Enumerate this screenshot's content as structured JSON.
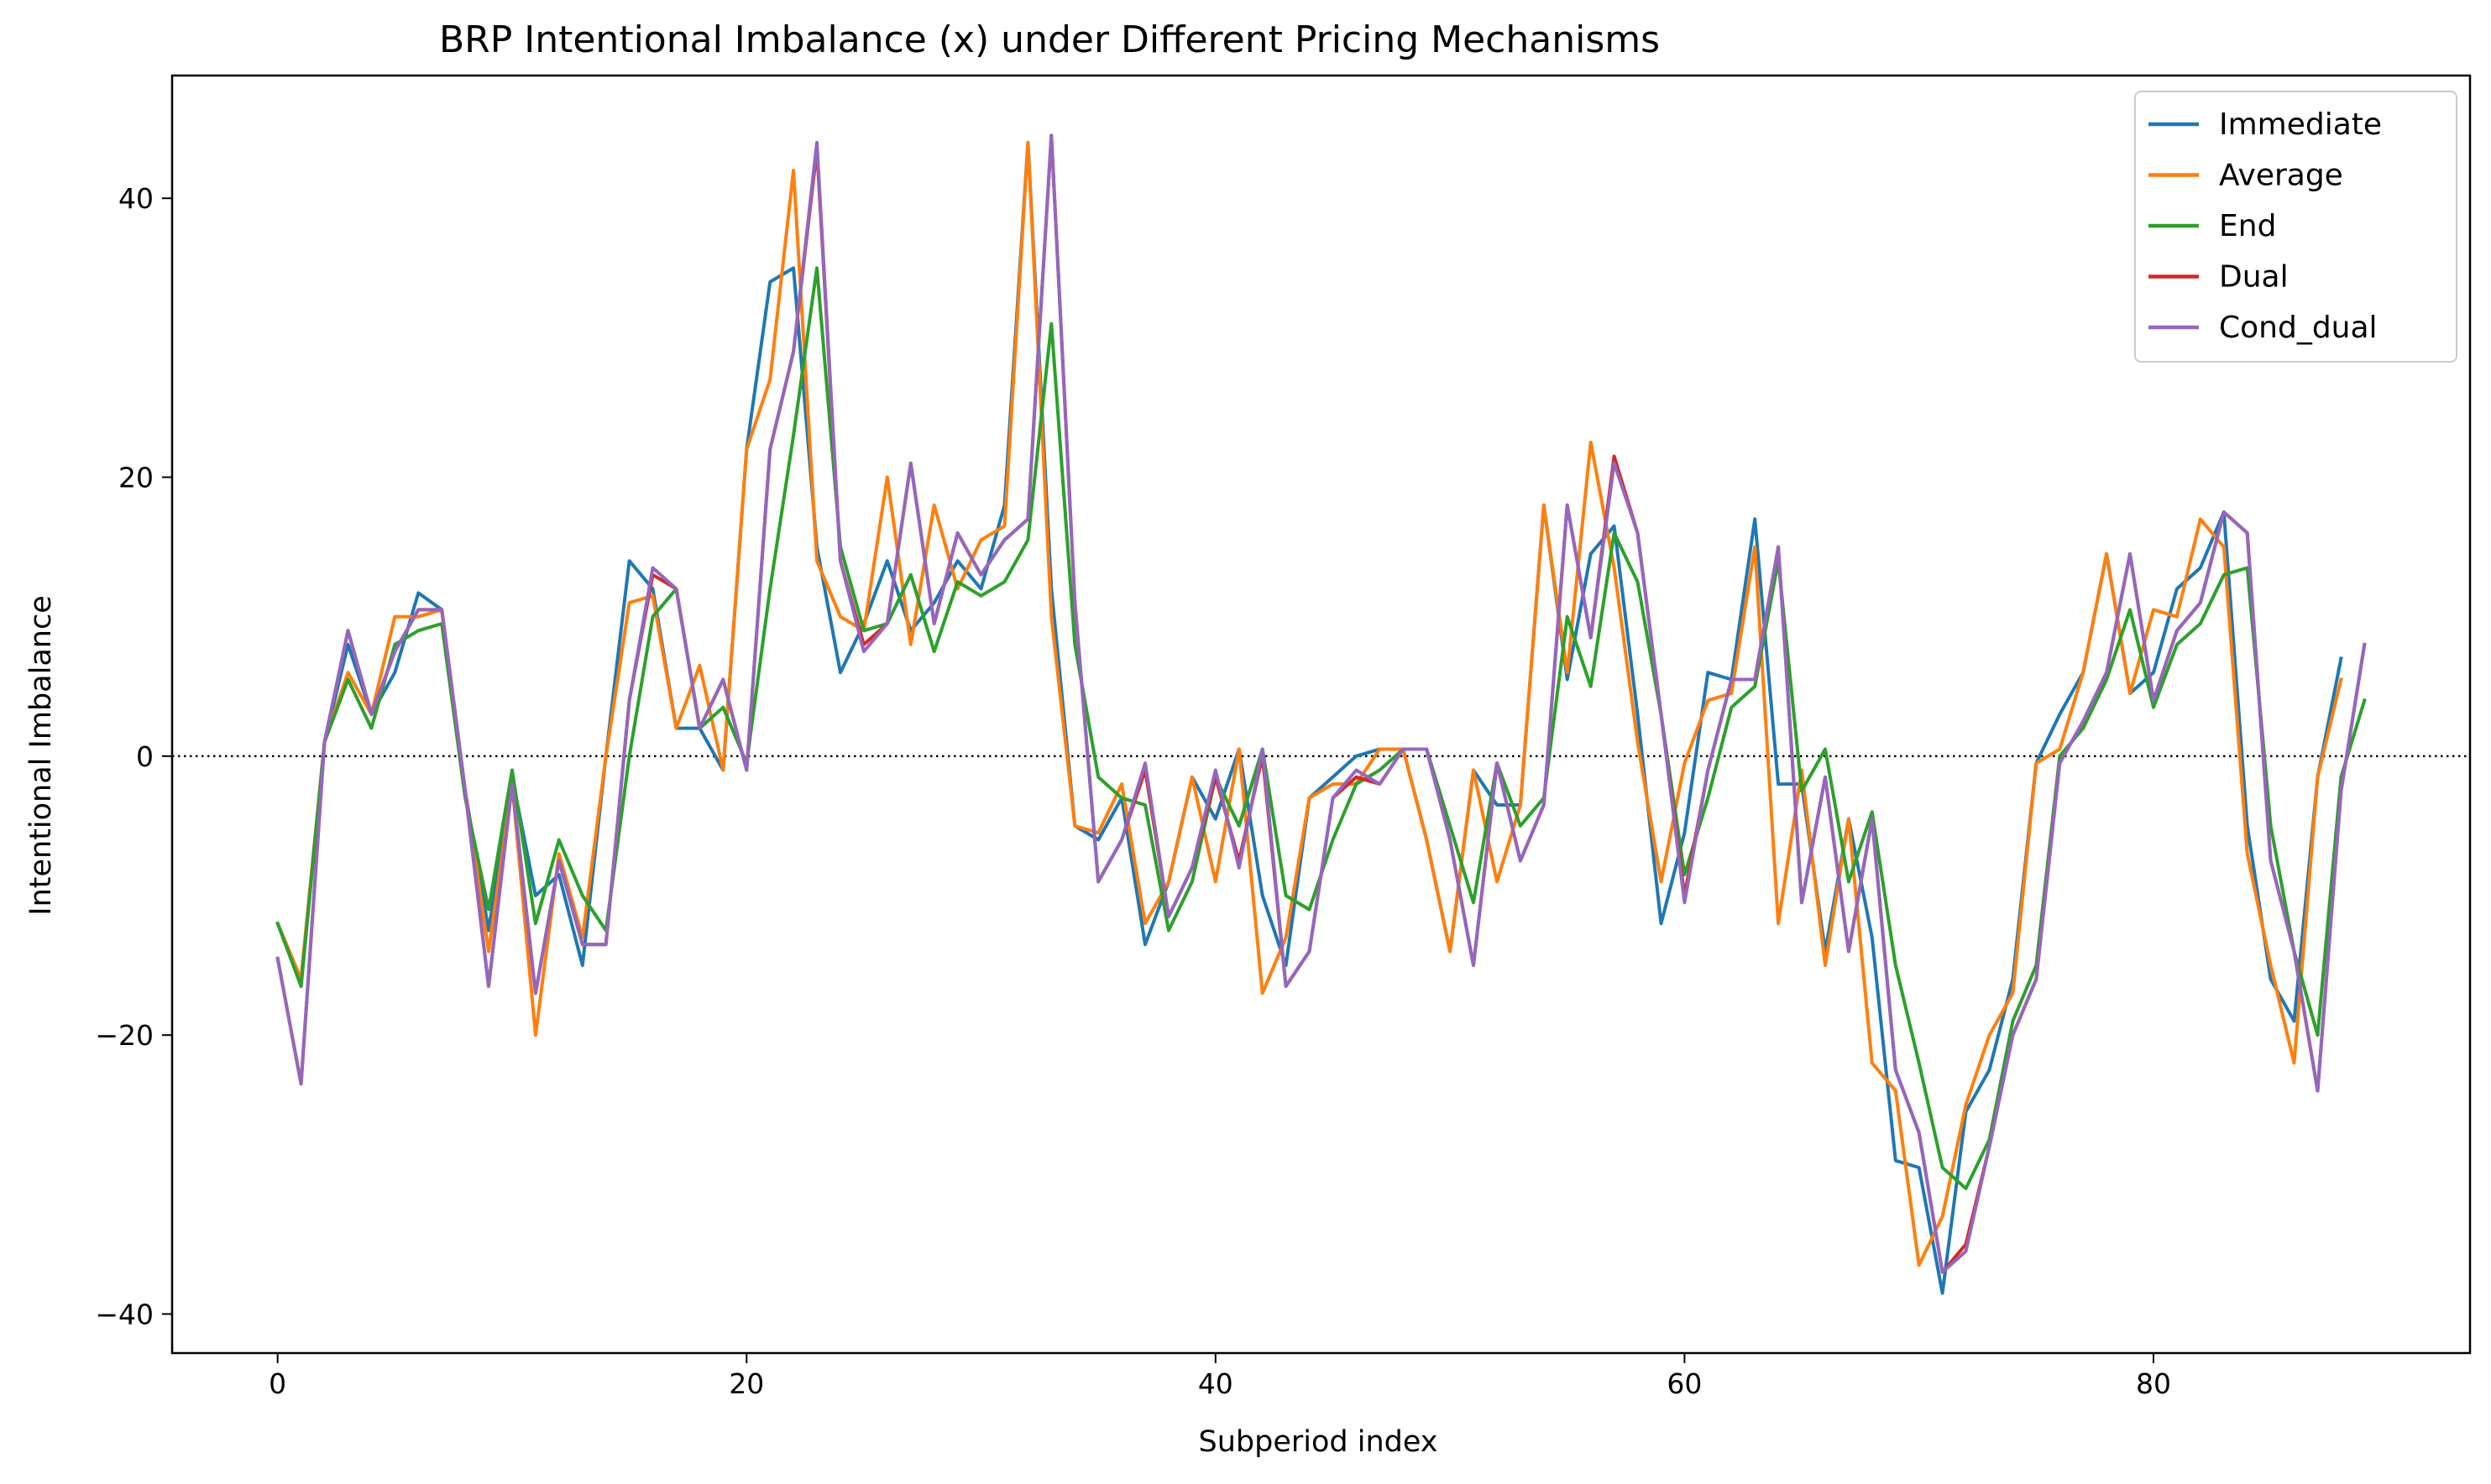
{
  "chart_data": {
    "type": "line",
    "title": "BRP Intentional Imbalance (x) under Different Pricing Mechanisms",
    "xlabel": "Subperiod index",
    "ylabel": "Intentional Imbalance",
    "xlim": [
      -4.5,
      93.5
    ],
    "ylim": [
      -42.8,
      48.8
    ],
    "xticks": [
      0,
      20,
      40,
      60,
      80
    ],
    "yticks": [
      -40,
      -20,
      0,
      20,
      40
    ],
    "xtick_labels": [
      "0",
      "20",
      "40",
      "60",
      "80"
    ],
    "ytick_labels": [
      "−40",
      "−20",
      "0",
      "20",
      "40"
    ],
    "reference_line": {
      "y": 0,
      "style": "dotted",
      "color": "#000000"
    },
    "legend": {
      "placement": "top-right"
    },
    "series": [
      {
        "name": "Immediate",
        "color": "#1f77b4",
        "values": [
          -12,
          -16,
          1,
          8,
          3,
          6,
          11.7,
          10.5,
          -2.5,
          -12.5,
          -1.5,
          -10,
          -8.5,
          -15,
          0,
          14,
          12,
          2,
          2,
          -1,
          22,
          34,
          35,
          15,
          6,
          9.5,
          14,
          9,
          11,
          14,
          12,
          18,
          44,
          12,
          -5,
          -6,
          -3,
          -13.5,
          -9,
          -1.5,
          -4.5,
          0.5,
          -10,
          -15,
          -3,
          -1.5,
          0,
          0.5,
          0.5,
          -6,
          -14,
          -1,
          -3.5,
          -3.5,
          18,
          5.5,
          14.5,
          16.5,
          3,
          -12,
          -5.5,
          6,
          5.5,
          17,
          -2,
          -2,
          -14,
          -4.5,
          -13,
          -29,
          -29.5,
          -38.5,
          -25.5,
          -22.5,
          -16,
          -0.5,
          3,
          6,
          14.5,
          4.5,
          6,
          12,
          13.5,
          17.5,
          -5,
          -16,
          -19,
          -1.5,
          7
        ]
      },
      {
        "name": "Average",
        "color": "#ff7f0e",
        "values": [
          -12,
          -16,
          1,
          6,
          3,
          10,
          10,
          10.5,
          -2.5,
          -14,
          -2,
          -20,
          -7,
          -13,
          0,
          11,
          11.5,
          2,
          6.5,
          -1,
          22,
          27,
          42,
          14,
          10,
          9,
          20,
          8,
          18,
          12,
          15.5,
          16.5,
          44,
          10,
          -5,
          -5.5,
          -2,
          -12,
          -9,
          -1.5,
          -9,
          0.5,
          -17,
          -13,
          -3,
          -2,
          -2,
          0.5,
          0.5,
          -6,
          -14,
          -1,
          -9,
          -3.5,
          18,
          6,
          22.5,
          13.5,
          1,
          -9,
          -0.5,
          4,
          4.5,
          15,
          -12,
          -1,
          -15,
          -4.5,
          -22,
          -24,
          -36.5,
          -33,
          -25,
          -20,
          -17,
          -0.5,
          0.5,
          6,
          14.5,
          4.5,
          10.5,
          10,
          17,
          15,
          -7,
          -15,
          -22,
          -1.5,
          5.5
        ]
      },
      {
        "name": "End",
        "color": "#2ca02c",
        "values": [
          -12,
          -16.5,
          1,
          5.5,
          2,
          8,
          9,
          9.5,
          -3,
          -11,
          -1,
          -12,
          -6,
          -10,
          -12.5,
          0,
          10,
          12,
          2,
          3.5,
          -0.5,
          12,
          23,
          35,
          15,
          9,
          9.5,
          13,
          7.5,
          12.5,
          11.5,
          12.5,
          15.5,
          31,
          8,
          -1.5,
          -3,
          -3.5,
          -12.5,
          -9,
          -1.5,
          -5,
          0.5,
          -10,
          -11,
          -6,
          -2,
          -1,
          0.5,
          0.5,
          -5,
          -10.5,
          -0.5,
          -5,
          -3,
          10,
          5,
          16,
          12.5,
          3,
          -8.5,
          -3,
          3.5,
          5,
          14,
          -2.5,
          0.5,
          -9,
          -4,
          -15,
          -22,
          -29.5,
          -31,
          -27.5,
          -19,
          -15,
          0,
          2,
          5.5,
          10.5,
          3.5,
          8,
          9.5,
          13,
          13.5,
          -5,
          -14,
          -20,
          -1.5,
          4
        ]
      },
      {
        "name": "Dual",
        "color": "#d62728",
        "values": [
          -14.5,
          -23.5,
          1,
          9,
          3,
          7.5,
          10.5,
          10.5,
          -2.5,
          -16.5,
          -2,
          -17,
          -7.5,
          -13.5,
          -13.5,
          4,
          13,
          12,
          2,
          5.5,
          -1,
          22,
          29,
          43.5,
          14,
          8,
          9.5,
          21,
          9.5,
          16,
          13,
          15.5,
          17,
          44.5,
          11,
          -9,
          -6,
          -1,
          -11.5,
          -8,
          -1.5,
          -7.5,
          0,
          -16.5,
          -14,
          -3,
          -1.5,
          -2,
          0.5,
          0.5,
          -6,
          -15,
          -0.5,
          -7.5,
          -3.5,
          18,
          8.5,
          21.5,
          16,
          3,
          -10,
          -1,
          5.5,
          5.5,
          15,
          -10.5,
          -1.5,
          -14,
          -4.5,
          -22.5,
          -27,
          -37,
          -35,
          -28,
          -20,
          -16,
          -0.5,
          2.5,
          6,
          14.5,
          4,
          9,
          11,
          17.5,
          16,
          -7.5,
          -14,
          -24,
          -2.5,
          8
        ]
      },
      {
        "name": "Cond_dual",
        "color": "#9467bd",
        "values": [
          -14.5,
          -23.5,
          1,
          9,
          3,
          7.5,
          10.5,
          10.5,
          -2.5,
          -16.5,
          -2,
          -17,
          -7.5,
          -13.5,
          -13.5,
          4,
          13.5,
          12,
          2,
          5.5,
          -1,
          22,
          29,
          44,
          14,
          7.5,
          9.5,
          21,
          9.5,
          16,
          13,
          15.5,
          17,
          44.5,
          11,
          -9,
          -6,
          -0.5,
          -11.5,
          -8,
          -1,
          -8,
          0.5,
          -16.5,
          -14,
          -3,
          -1,
          -2,
          0.5,
          0.5,
          -6,
          -15,
          -0.5,
          -7.5,
          -3.5,
          18,
          8.5,
          21,
          16,
          3,
          -10.5,
          -1,
          5.5,
          5.5,
          15,
          -10.5,
          -1.5,
          -14,
          -4.5,
          -22.5,
          -27,
          -37,
          -35.5,
          -28,
          -20,
          -16,
          -0.5,
          2.5,
          6,
          14.5,
          4,
          9,
          11,
          17.5,
          16,
          -7.5,
          -14,
          -24,
          -2.5,
          8
        ]
      }
    ]
  }
}
